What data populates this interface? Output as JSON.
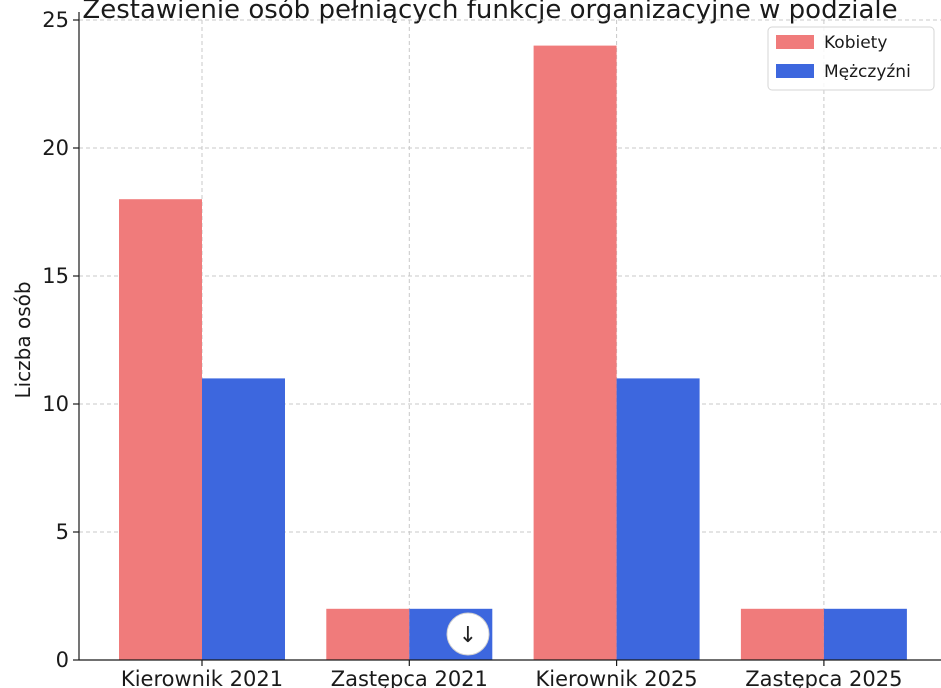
{
  "chart_data": {
    "type": "bar",
    "title": "Zestawienie osób pełniących funkcje organizacyjne w podziale",
    "xlabel": "",
    "ylabel": "Liczba osób",
    "categories": [
      "Kierownik 2021",
      "Zastępca 2021",
      "Kierownik 2025",
      "Zastępca 2025"
    ],
    "series": [
      {
        "name": "Kobiety",
        "color": "#f07b7b",
        "values": [
          18,
          2,
          24,
          2
        ]
      },
      {
        "name": "Mężczyźni",
        "color": "#3d67de",
        "values": [
          11,
          2,
          11,
          2
        ]
      }
    ],
    "ylim": [
      0,
      25
    ],
    "yticks": [
      "0",
      "5",
      "10",
      "15",
      "20",
      "25"
    ],
    "grid": true,
    "legend_position": "top-right"
  },
  "overlay": {
    "scroll_down_icon": "arrow-down-icon",
    "scroll_down_glyph": "↓"
  }
}
